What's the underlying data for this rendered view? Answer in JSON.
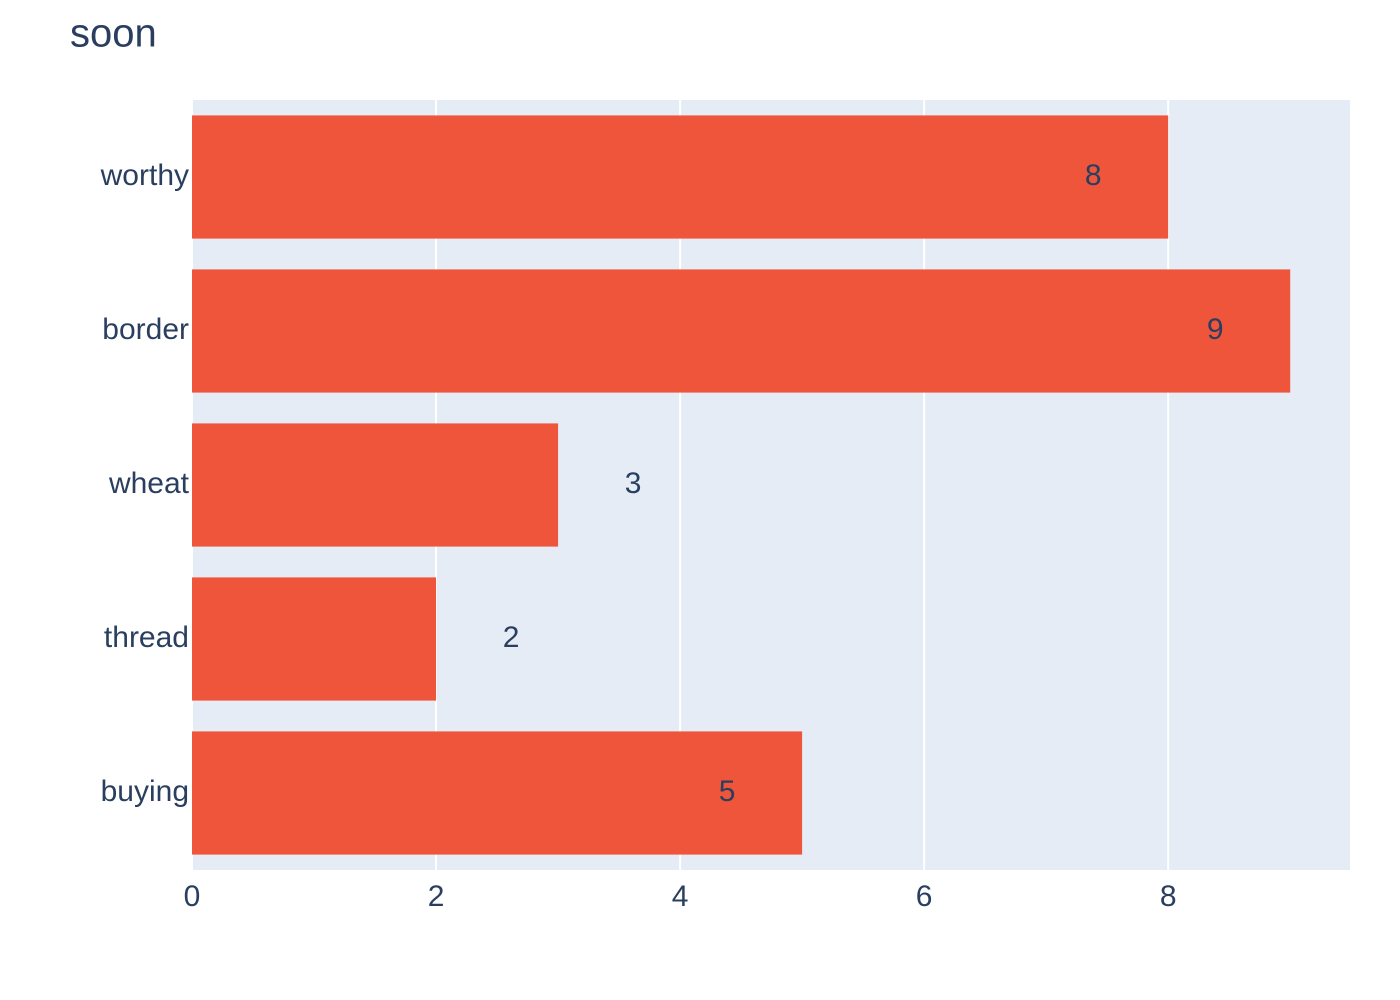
{
  "chart_data": {
    "type": "bar",
    "orientation": "horizontal",
    "title": "soon",
    "categories": [
      "worthy",
      "border",
      "wheat",
      "thread",
      "buying"
    ],
    "values": [
      8,
      9,
      3,
      2,
      5
    ],
    "color": "#EF553B",
    "xlim": [
      0,
      9.49
    ],
    "xticks": [
      0,
      2,
      4,
      6,
      8
    ],
    "grid": true
  }
}
